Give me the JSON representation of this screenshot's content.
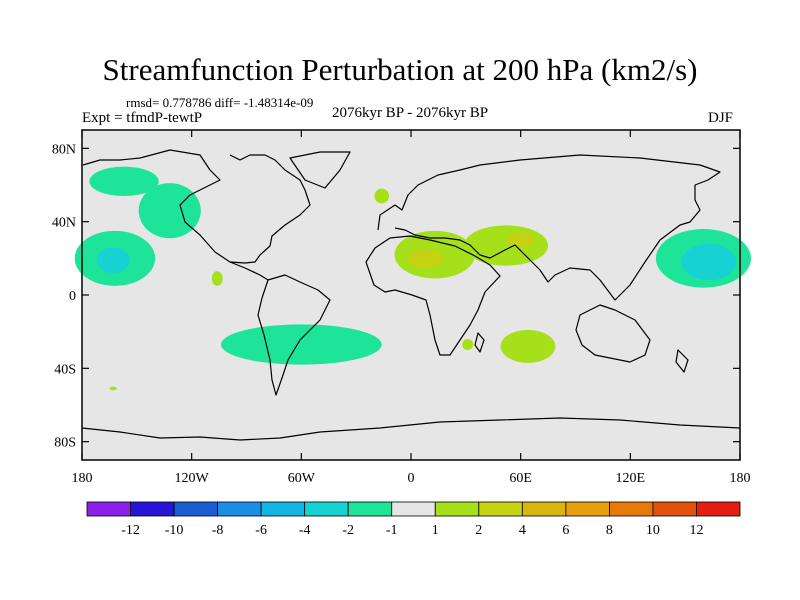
{
  "header": {
    "title": "Streamfunction Perturbation at 200 hPa (km2/s)",
    "stats": "rmsd= 0.778786 diff= -1.48314e-09",
    "experiment": "Expt = tfmdP-tewtP",
    "period": "2076kyr BP - 2076kyr BP",
    "season": "DJF"
  },
  "chart_data": {
    "type": "heatmap",
    "title": "Streamfunction Perturbation at 200 hPa (km2/s)",
    "subtitle": "2076kyr BP - 2076kyr BP",
    "xlabel": "",
    "ylabel": "",
    "xlim": [
      -180,
      180
    ],
    "ylim": [
      -90,
      90
    ],
    "x_ticks": [
      {
        "value": -180,
        "label": "180"
      },
      {
        "value": -120,
        "label": "120W"
      },
      {
        "value": -60,
        "label": "60W"
      },
      {
        "value": 0,
        "label": "0"
      },
      {
        "value": 60,
        "label": "60E"
      },
      {
        "value": 120,
        "label": "120E"
      },
      {
        "value": 180,
        "label": "180"
      }
    ],
    "y_ticks": [
      {
        "value": 80,
        "label": "80N"
      },
      {
        "value": 40,
        "label": "40N"
      },
      {
        "value": 0,
        "label": "0"
      },
      {
        "value": -40,
        "label": "40S"
      },
      {
        "value": -80,
        "label": "80S"
      }
    ],
    "colorbar": {
      "colors": [
        "#8c1fe8",
        "#2a14d8",
        "#1a5ed2",
        "#1a8ee4",
        "#12b4e2",
        "#17d2d2",
        "#1ee49a",
        "#e6e6e6",
        "#a5e01a",
        "#c6d212",
        "#d8b612",
        "#e6a00e",
        "#e57a0a",
        "#e0520a",
        "#e41e10"
      ],
      "labels": [
        "-12",
        "-10",
        "-8",
        "-6",
        "-4",
        "-2",
        "-1",
        "1",
        "2",
        "4",
        "6",
        "8",
        "10",
        "12"
      ]
    },
    "regions": [
      {
        "name": "north-pacific-negative",
        "level": -1,
        "color": "#1ee49a",
        "lon": -132,
        "lat": 46,
        "dlon": 17,
        "dlat": 15
      },
      {
        "name": "north-pacific-negative-tongue",
        "level": -1,
        "color": "#1ee49a",
        "lon": -157,
        "lat": 62,
        "dlon": 19,
        "dlat": 8
      },
      {
        "name": "central-pacific-negative",
        "level": -1,
        "color": "#1ee49a",
        "lon": -162,
        "lat": 20,
        "dlon": 22,
        "dlat": 15
      },
      {
        "name": "central-pacific-core",
        "level": -2,
        "color": "#17d2d2",
        "lon": -163,
        "lat": 19,
        "dlon": 9,
        "dlat": 7
      },
      {
        "name": "south-atlantic-negative",
        "level": -1,
        "color": "#1ee49a",
        "lon": -60,
        "lat": -27,
        "dlon": 44,
        "dlat": 11
      },
      {
        "name": "west-pacific-negative",
        "level": -1,
        "color": "#1ee49a",
        "lon": 160,
        "lat": 20,
        "dlon": 26,
        "dlat": 16
      },
      {
        "name": "west-pacific-core",
        "level": -2,
        "color": "#17d2d2",
        "lon": 163,
        "lat": 18,
        "dlon": 15,
        "dlat": 10
      },
      {
        "name": "north-africa-positive",
        "level": 1,
        "color": "#a5e01a",
        "lon": 13,
        "lat": 22,
        "dlon": 22,
        "dlat": 13
      },
      {
        "name": "arabia-positive",
        "level": 1,
        "color": "#a5e01a",
        "lon": 52,
        "lat": 27,
        "dlon": 23,
        "dlat": 11
      },
      {
        "name": "sahara-core",
        "level": 2,
        "color": "#c6d212",
        "lon": 8,
        "lat": 20,
        "dlon": 10,
        "dlat": 5
      },
      {
        "name": "middle-east-core",
        "level": 2,
        "color": "#c6d212",
        "lon": 60,
        "lat": 30,
        "dlon": 8,
        "dlat": 4
      },
      {
        "name": "south-indian-ocean-positive",
        "level": 1,
        "color": "#a5e01a",
        "lon": 64,
        "lat": -28,
        "dlon": 15,
        "dlat": 9
      },
      {
        "name": "south-africa-positive",
        "level": 1,
        "color": "#a5e01a",
        "lon": 31,
        "lat": -27,
        "dlon": 3,
        "dlat": 3
      },
      {
        "name": "east-pacific-positive",
        "level": 1,
        "color": "#a5e01a",
        "lon": -106,
        "lat": 9,
        "dlon": 3,
        "dlat": 4
      },
      {
        "name": "north-atlantic-positive",
        "level": 1,
        "color": "#a5e01a",
        "lon": -16,
        "lat": 54,
        "dlon": 4,
        "dlat": 4
      },
      {
        "name": "south-pacific-positive",
        "level": 1,
        "color": "#a5e01a",
        "lon": -163,
        "lat": -51,
        "dlon": 2,
        "dlat": 1
      }
    ]
  }
}
